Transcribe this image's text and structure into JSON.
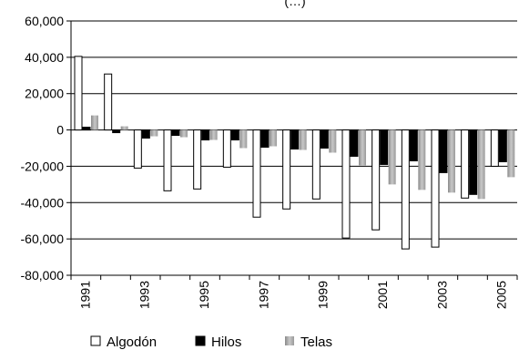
{
  "chart_data": {
    "type": "bar",
    "title": "(…) ",
    "xlabel": "",
    "ylabel": "",
    "ylim": [
      -80000,
      60000
    ],
    "yticks": [
      "60,000",
      "40,000",
      "20,000",
      "0",
      "-20,000",
      "-40,000",
      "-60,000",
      "-80,000"
    ],
    "categories": [
      "1991",
      "1992",
      "1993",
      "1994",
      "1995",
      "1996",
      "1997",
      "1998",
      "1999",
      "2000",
      "2001",
      "2002",
      "2003",
      "2004",
      "2005"
    ],
    "xtick_labels": [
      "1991",
      "",
      "1993",
      "",
      "1995",
      "",
      "1997",
      "",
      "1999",
      "",
      "2001",
      "",
      "2003",
      "",
      "2005"
    ],
    "series": [
      {
        "name": "Algodón",
        "values": [
          40500,
          30800,
          -21000,
          -33500,
          -32500,
          -20500,
          -48000,
          -43500,
          -38000,
          -59500,
          -55000,
          -65500,
          -64500,
          -37500,
          -20000
        ]
      },
      {
        "name": "Hilos",
        "values": [
          1500,
          -1500,
          -4500,
          -3000,
          -5500,
          -5500,
          -9500,
          -10500,
          -10000,
          -14500,
          -19000,
          -17000,
          -23500,
          -35500,
          -17500
        ]
      },
      {
        "name": "Telas",
        "values": [
          8000,
          2000,
          -3500,
          -4000,
          -5500,
          -10000,
          -9000,
          -11000,
          -12500,
          -19500,
          -30000,
          -33000,
          -34500,
          -38000,
          -26000
        ]
      }
    ],
    "grid": true,
    "legend_position": "bottom",
    "colors": {
      "Algodón": "#ffffff",
      "Hilos": "#000000",
      "Telas": "#b3b3b3"
    }
  }
}
